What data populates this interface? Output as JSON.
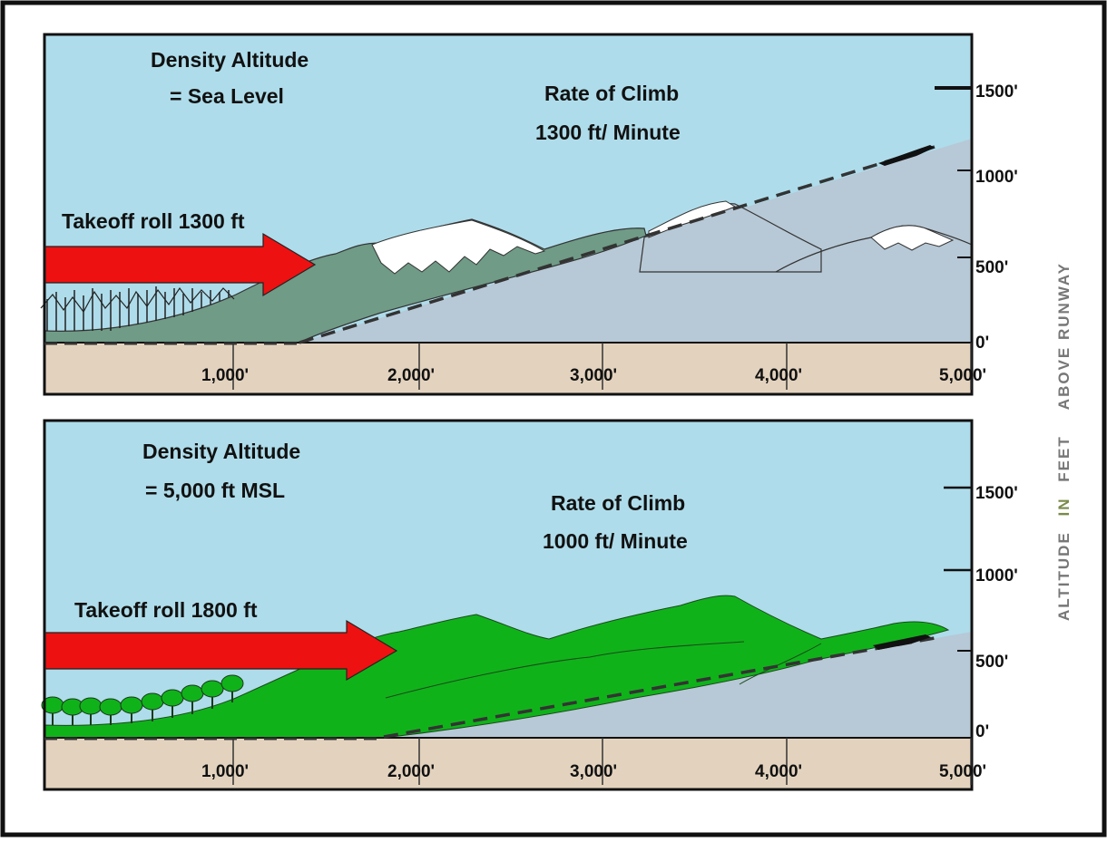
{
  "colors": {
    "sky": "#aedcea",
    "ground": "#e3d3be",
    "climb_area": "#b7c8d6",
    "terrain_top": "#6f9b87",
    "terrain_bottom": "#10b21a",
    "arrow": "#ee1111",
    "axis_label_gray": "#777777",
    "axis_label_olive": "#7a8a4a"
  },
  "y_axis_label": {
    "part1": "ALTITUDE",
    "part2": "IN",
    "part3": "FEET",
    "part4": "ABOVE RUNWAY"
  },
  "panels": [
    {
      "density_altitude_line1": "Density Altitude",
      "density_altitude_line2": "= Sea Level",
      "rate_of_climb_line1": "Rate of Climb",
      "rate_of_climb_line2": "1300 ft/ Minute",
      "takeoff_roll_label": "Takeoff roll 1300 ft",
      "takeoff_roll_ft": 1300,
      "rate_of_climb_fpm": 1300,
      "x_ticks": [
        "1,000'",
        "2,000'",
        "3,000'",
        "4,000'",
        "5,000'"
      ],
      "y_ticks": [
        "0'",
        "500'",
        "1000'",
        "1500'"
      ]
    },
    {
      "density_altitude_line1": "Density Altitude",
      "density_altitude_line2": "= 5,000 ft MSL",
      "rate_of_climb_line1": "Rate of Climb",
      "rate_of_climb_line2": "1000 ft/ Minute",
      "takeoff_roll_label": "Takeoff roll 1800 ft",
      "takeoff_roll_ft": 1800,
      "rate_of_climb_fpm": 1000,
      "x_ticks": [
        "1,000'",
        "2,000'",
        "3,000'",
        "4,000'",
        "5,000'"
      ],
      "y_ticks": [
        "0'",
        "500'",
        "1000'",
        "1500'"
      ]
    }
  ]
}
